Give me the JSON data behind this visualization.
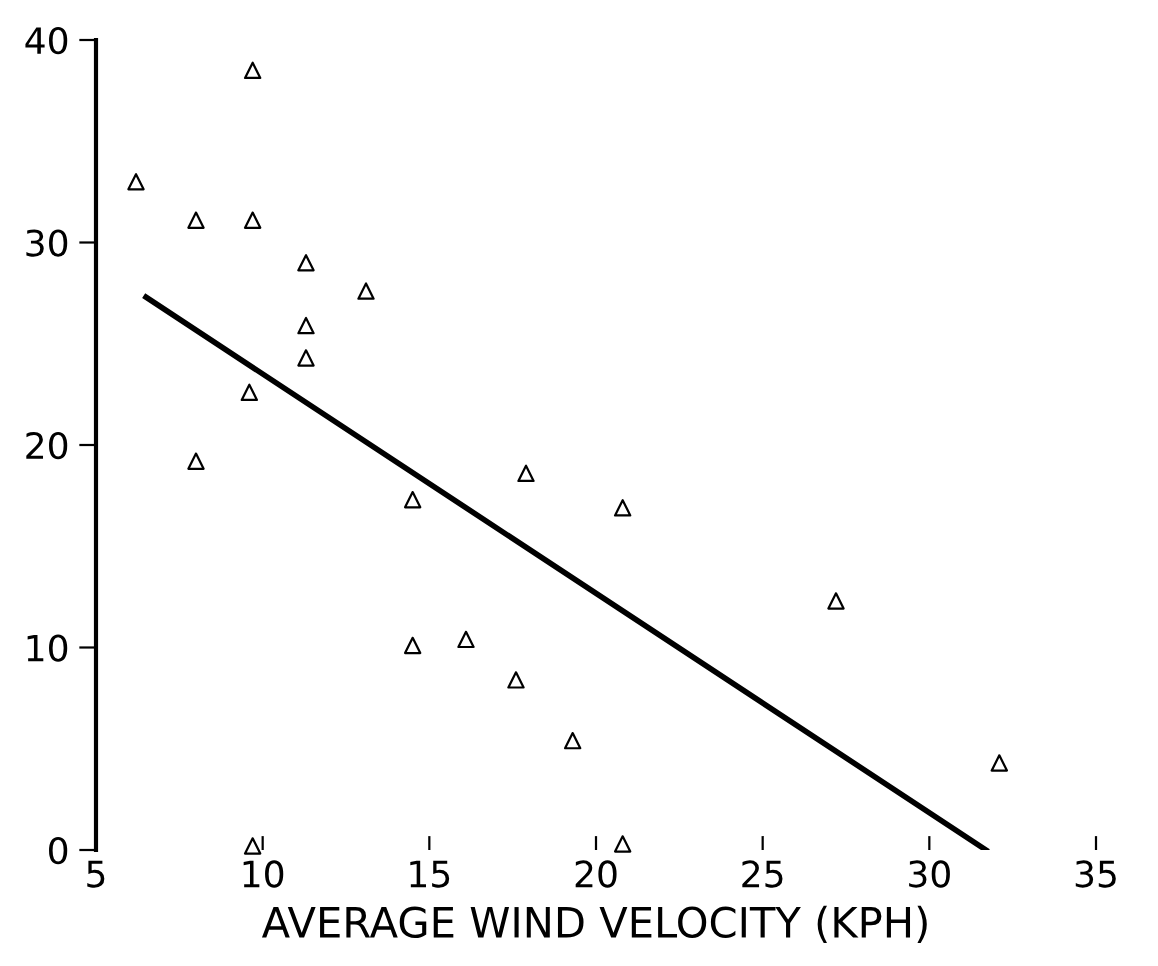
{
  "chart_data": {
    "type": "scatter",
    "xlabel": "AVERAGE WIND VELOCITY (KPH)",
    "xlim": [
      5,
      35
    ],
    "ylim": [
      0,
      40
    ],
    "xticks": [
      5,
      10,
      15,
      20,
      25,
      30,
      35
    ],
    "yticks": [
      0,
      10,
      20,
      30,
      40
    ],
    "grid": false,
    "legend": false,
    "series": [
      {
        "marker": "triangle",
        "color": "#000000",
        "x": [
          6.2,
          8.0,
          9.7,
          9.7,
          11.3,
          11.3,
          11.3,
          13.1,
          9.6,
          8.0,
          14.5,
          17.9,
          20.8,
          14.5,
          16.1,
          17.6,
          19.3,
          27.2,
          32.1,
          9.7,
          20.8
        ],
        "values": [
          33.0,
          31.1,
          38.5,
          31.1,
          29.0,
          25.9,
          24.3,
          27.6,
          22.6,
          19.2,
          17.3,
          18.6,
          16.9,
          10.1,
          10.4,
          8.4,
          5.4,
          12.3,
          4.3,
          0.2,
          0.3
        ]
      },
      {
        "type": "line",
        "marker": "none",
        "line_style": "solid",
        "color": "#000000",
        "x": [
          6.5,
          31.7
        ],
        "values": [
          27.3,
          0
        ]
      }
    ]
  }
}
